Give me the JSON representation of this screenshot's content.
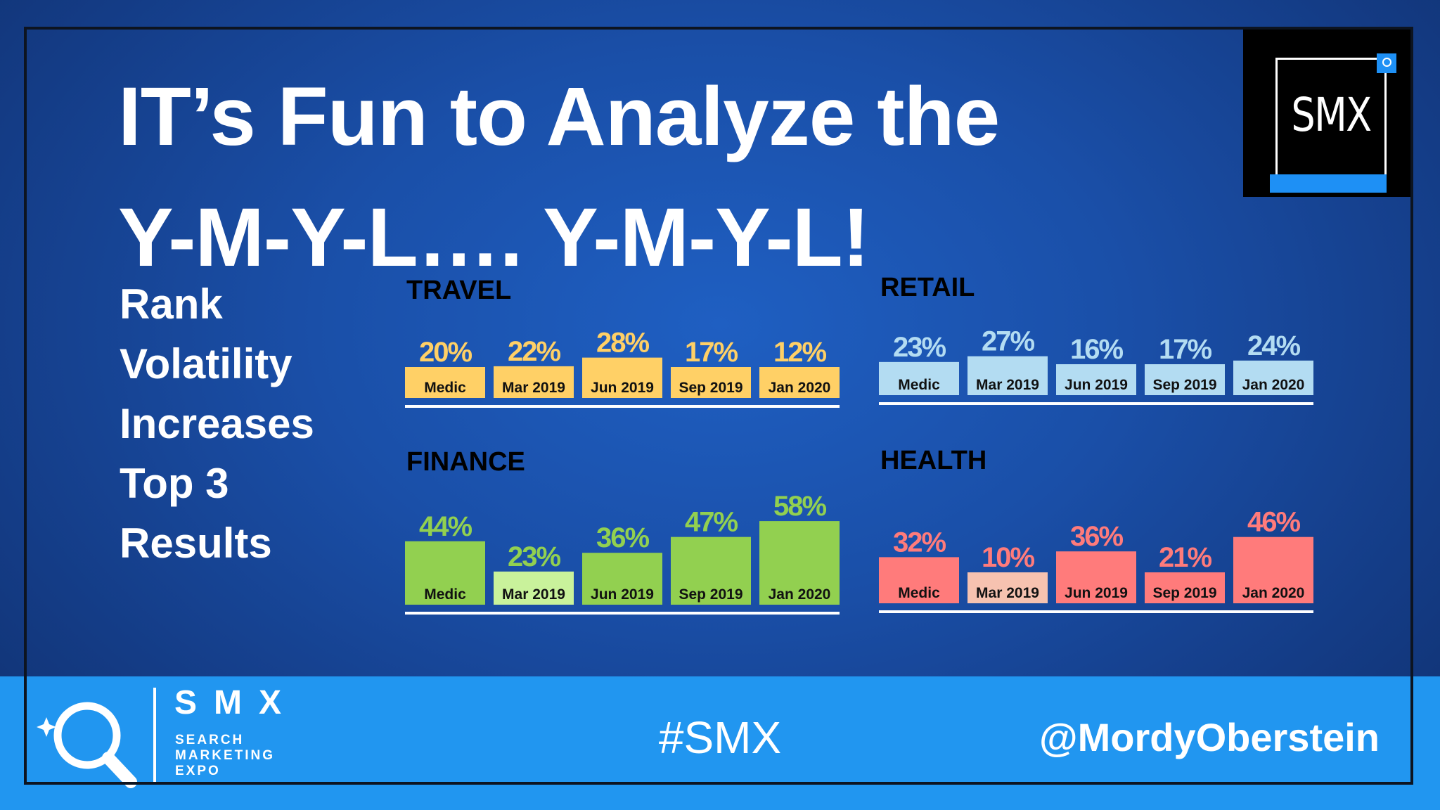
{
  "slide": {
    "title_line1": "IT’s Fun to Analyze the",
    "title_line2": "Y-M-Y-L…. Y-M-Y-L!",
    "side_lines": [
      "Rank",
      "Volatility",
      "Increases",
      "Top 3",
      "Results"
    ],
    "logo_text": "SMX"
  },
  "footer": {
    "brand": "SMX",
    "brand_sub": [
      "SEARCH",
      "MARKETING",
      "EXPO"
    ],
    "hashtag": "#SMX",
    "handle": "@MordyOberstein"
  },
  "chart_data": [
    {
      "type": "bar",
      "title": "TRAVEL",
      "categories": [
        "Medic",
        "Mar 2019",
        "Jun 2019",
        "Sep 2019",
        "Jan 2020"
      ],
      "values": [
        20,
        22,
        28,
        17,
        12
      ],
      "value_labels": [
        "20%",
        "22%",
        "28%",
        "17%",
        "12%"
      ],
      "unit": "%",
      "color": "#ffd066",
      "label_color": "#ffd066",
      "bar_colors": [
        "#ffd066",
        "#ffd066",
        "#ffd066",
        "#ffd066",
        "#ffd066"
      ]
    },
    {
      "type": "bar",
      "title": "RETAIL",
      "categories": [
        "Medic",
        "Mar 2019",
        "Jun 2019",
        "Sep 2019",
        "Jan 2020"
      ],
      "values": [
        23,
        27,
        16,
        17,
        24
      ],
      "value_labels": [
        "23%",
        "27%",
        "16%",
        "17%",
        "24%"
      ],
      "unit": "%",
      "color": "#b3dcf2",
      "label_color": "#b3dcf2",
      "bar_colors": [
        "#b3dcf2",
        "#b3dcf2",
        "#b3dcf2",
        "#b3dcf2",
        "#b3dcf2"
      ]
    },
    {
      "type": "bar",
      "title": "FINANCE",
      "categories": [
        "Medic",
        "Mar 2019",
        "Jun 2019",
        "Sep 2019",
        "Jan 2020"
      ],
      "values": [
        44,
        23,
        36,
        47,
        58
      ],
      "value_labels": [
        "44%",
        "23%",
        "36%",
        "47%",
        "58%"
      ],
      "unit": "%",
      "color": "#92d050",
      "label_color": "#92d050",
      "bar_colors": [
        "#92d050",
        "#c9f29b",
        "#92d050",
        "#92d050",
        "#92d050"
      ]
    },
    {
      "type": "bar",
      "title": "HEALTH",
      "categories": [
        "Medic",
        "Mar 2019",
        "Jun 2019",
        "Sep 2019",
        "Jan 2020"
      ],
      "values": [
        32,
        10,
        36,
        21,
        46
      ],
      "value_labels": [
        "32%",
        "10%",
        "36%",
        "21%",
        "46%"
      ],
      "unit": "%",
      "color": "#ff7b7b",
      "label_color": "#ff7b7b",
      "bar_colors": [
        "#ff7b7b",
        "#f6c2b0",
        "#ff7b7b",
        "#ff7b7b",
        "#ff7b7b"
      ]
    }
  ]
}
